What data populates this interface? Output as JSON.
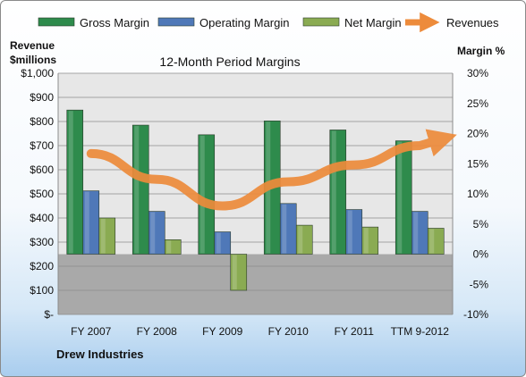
{
  "chart_data": {
    "type": "bar",
    "title": "12-Month Period Margins",
    "company": "Drew Industries",
    "y_left_label_line1": "Revenue",
    "y_left_label_line2": "$millions",
    "y_right_label": "Margin %",
    "categories": [
      "FY 2007",
      "FY 2008",
      "FY 2009",
      "FY 2010",
      "FY 2011",
      "TTM 9-2012"
    ],
    "left_axis": {
      "min": 0,
      "max": 1000,
      "step": 100,
      "tick_labels": [
        "$-",
        "$100",
        "$200",
        "$300",
        "$400",
        "$500",
        "$600",
        "$700",
        "$800",
        "$900",
        "$1,000"
      ]
    },
    "right_axis": {
      "min": -10,
      "max": 30,
      "step": 5,
      "tick_labels": [
        "-10%",
        "-5%",
        "0%",
        "5%",
        "10%",
        "15%",
        "20%",
        "25%",
        "30%"
      ]
    },
    "series": [
      {
        "name": "Gross Margin",
        "type": "bar",
        "axis": "right",
        "color": "#2e8b4c",
        "values": [
          23.9,
          21.4,
          19.8,
          22.1,
          20.6,
          18.8
        ]
      },
      {
        "name": "Operating Margin",
        "type": "bar",
        "axis": "right",
        "color": "#4f78b8",
        "values": [
          10.5,
          7.1,
          3.7,
          8.4,
          7.4,
          7.1
        ]
      },
      {
        "name": "Net Margin",
        "type": "bar",
        "axis": "right",
        "color": "#8aab52",
        "values": [
          6.0,
          2.4,
          -6.0,
          4.8,
          4.5,
          4.3
        ]
      },
      {
        "name": "Revenues",
        "type": "line",
        "axis": "left",
        "color": "#ed8b3b",
        "values": [
          667,
          560,
          450,
          550,
          620,
          700
        ]
      }
    ],
    "legend_position": "top",
    "grid": true,
    "lower_band_color": "#a9a9a9",
    "upper_band_color": "#e7e7e7"
  }
}
